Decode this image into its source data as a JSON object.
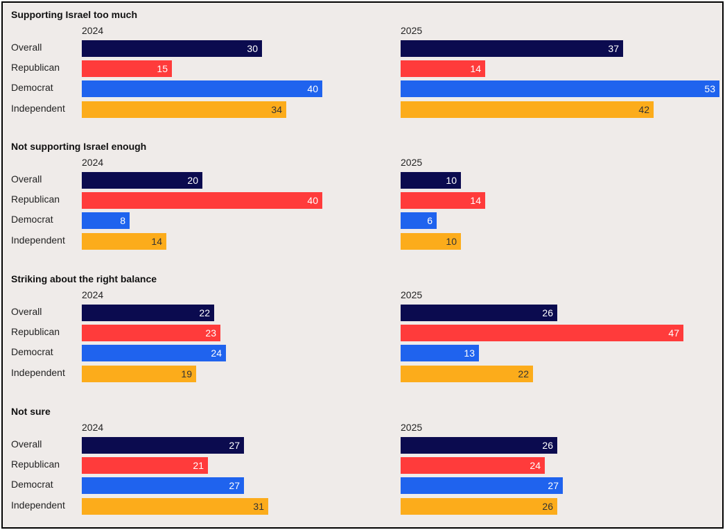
{
  "chart_data": {
    "type": "bar",
    "orientation": "horizontal",
    "years": [
      "2024",
      "2025"
    ],
    "categories": [
      "Overall",
      "Republican",
      "Democrat",
      "Independent"
    ],
    "colors": {
      "Overall": "#0b0b4f",
      "Republican": "#ff3b3b",
      "Democrat": "#1f63ee",
      "Independent": "#fcac1b"
    },
    "value_text_colors": {
      "Overall": "#ffffff",
      "Republican": "#ffffff",
      "Democrat": "#ffffff",
      "Independent": "#333333"
    },
    "xlim": [
      0,
      53
    ],
    "panels": [
      {
        "title": "Supporting Israel too much",
        "series": [
          {
            "name": "2024",
            "values": [
              30,
              15,
              40,
              34
            ]
          },
          {
            "name": "2025",
            "values": [
              37,
              14,
              53,
              42
            ]
          }
        ]
      },
      {
        "title": "Not supporting Israel enough",
        "series": [
          {
            "name": "2024",
            "values": [
              20,
              40,
              8,
              14
            ]
          },
          {
            "name": "2025",
            "values": [
              10,
              14,
              6,
              10
            ]
          }
        ]
      },
      {
        "title": "Striking about the right balance",
        "series": [
          {
            "name": "2024",
            "values": [
              22,
              23,
              24,
              19
            ]
          },
          {
            "name": "2025",
            "values": [
              26,
              47,
              13,
              22
            ]
          }
        ]
      },
      {
        "title": "Not sure",
        "series": [
          {
            "name": "2024",
            "values": [
              27,
              21,
              27,
              31
            ]
          },
          {
            "name": "2025",
            "values": [
              26,
              24,
              27,
              26
            ]
          }
        ]
      }
    ]
  }
}
